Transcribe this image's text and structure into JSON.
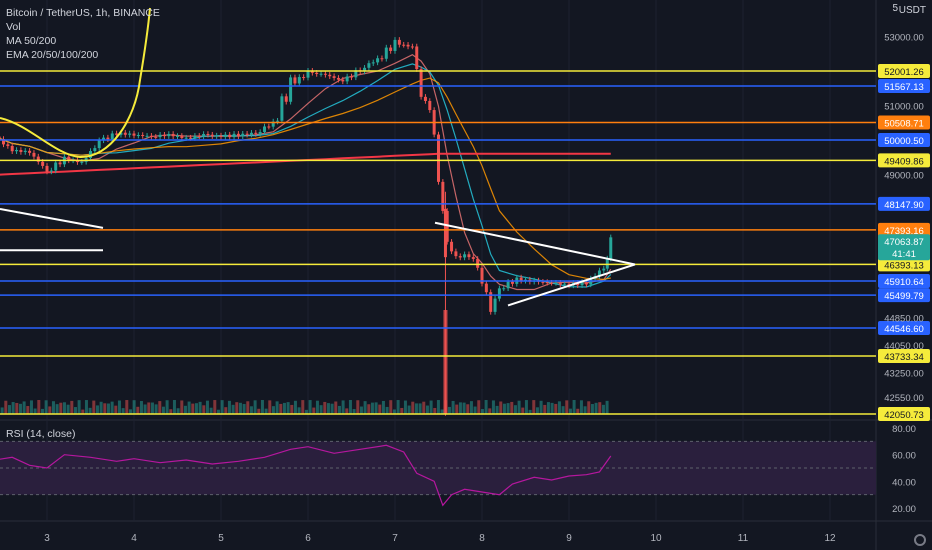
{
  "legend": {
    "title": "Bitcoin / TetherUS, 1h, BINANCE",
    "vol": "Vol",
    "ma": "MA 50/200",
    "ema": "EMA 20/50/100/200"
  },
  "rsi_label": "RSI (14, close)",
  "currency": "USDT",
  "currency_mark": "5",
  "colors": {
    "background": "#131722",
    "up": "#26a69a",
    "down": "#ef5350",
    "yellow": "#f5eb3b",
    "blue": "#2962ff",
    "orange": "#ff7f0e",
    "rsi_line": "#b5179e",
    "rsi_band": "#2a1f3d"
  },
  "chart_data": {
    "type": "candlestick",
    "x_ticks": [
      "3",
      "4",
      "5",
      "6",
      "7",
      "8",
      "9",
      "10",
      "11",
      "12"
    ],
    "price_ticks": [
      53000.0,
      51000.0,
      49000.0,
      44850.0,
      44050.0,
      43250.0,
      42550.0
    ],
    "rsi_ticks": [
      80.0,
      60.0,
      40.0,
      20.0
    ],
    "current_price": "47063.87",
    "countdown": "41:41",
    "levels": [
      {
        "price": 52001.26,
        "label": "52001.26",
        "kind": "yellow"
      },
      {
        "price": 51567.13,
        "label": "51567.13",
        "kind": "blue"
      },
      {
        "price": 50508.71,
        "label": "50508.71",
        "kind": "orange"
      },
      {
        "price": 50000.5,
        "label": "50000.50",
        "kind": "blue"
      },
      {
        "price": 49409.86,
        "label": "49409.86",
        "kind": "yellow"
      },
      {
        "price": 48147.9,
        "label": "48147.90",
        "kind": "blue"
      },
      {
        "price": 47393.16,
        "label": "47393.16",
        "kind": "orange"
      },
      {
        "price": 46393.13,
        "label": "46393.13",
        "kind": "yellow"
      },
      {
        "price": 45910.64,
        "label": "45910.64",
        "kind": "blue"
      },
      {
        "price": 45499.79,
        "label": "45499.79",
        "kind": "blue"
      },
      {
        "price": 44546.6,
        "label": "44546.60",
        "kind": "blue"
      },
      {
        "price": 43733.34,
        "label": "43733.34",
        "kind": "yellow"
      },
      {
        "price": 42050.73,
        "label": "42050.73",
        "kind": "yellow"
      }
    ],
    "price_path": [
      [
        2.4,
        50100
      ],
      [
        2.6,
        49700
      ],
      [
        2.8,
        49650
      ],
      [
        3.0,
        49100
      ],
      [
        3.2,
        49450
      ],
      [
        3.4,
        49350
      ],
      [
        3.6,
        49950
      ],
      [
        3.8,
        50200
      ],
      [
        4.0,
        50150
      ],
      [
        4.2,
        50100
      ],
      [
        4.4,
        50150
      ],
      [
        4.6,
        50050
      ],
      [
        4.8,
        50150
      ],
      [
        5.0,
        50100
      ],
      [
        5.2,
        50150
      ],
      [
        5.4,
        50200
      ],
      [
        5.6,
        50500
      ],
      [
        5.8,
        51600
      ],
      [
        6.0,
        51950
      ],
      [
        6.2,
        51900
      ],
      [
        6.4,
        51700
      ],
      [
        6.6,
        52050
      ],
      [
        6.8,
        52350
      ],
      [
        7.0,
        52800
      ],
      [
        7.2,
        52700
      ],
      [
        7.3,
        51300
      ],
      [
        7.4,
        50900
      ],
      [
        7.5,
        49000
      ],
      [
        7.6,
        47000
      ],
      [
        7.7,
        46600
      ],
      [
        7.8,
        46650
      ],
      [
        7.9,
        46550
      ],
      [
        8.0,
        45900
      ],
      [
        8.1,
        45100
      ],
      [
        8.2,
        45700
      ],
      [
        8.4,
        45950
      ],
      [
        8.6,
        45900
      ],
      [
        8.8,
        45850
      ],
      [
        9.0,
        45800
      ],
      [
        9.2,
        45850
      ],
      [
        9.4,
        46300
      ],
      [
        9.48,
        47060
      ]
    ],
    "rsi_path": [
      [
        2.4,
        56
      ],
      [
        2.6,
        58
      ],
      [
        2.8,
        52
      ],
      [
        3.0,
        50
      ],
      [
        3.2,
        60
      ],
      [
        3.5,
        58
      ],
      [
        3.8,
        55
      ],
      [
        4.0,
        57
      ],
      [
        4.3,
        54
      ],
      [
        4.6,
        56
      ],
      [
        4.9,
        53
      ],
      [
        5.2,
        55
      ],
      [
        5.5,
        58
      ],
      [
        5.8,
        64
      ],
      [
        6.0,
        66
      ],
      [
        6.3,
        61
      ],
      [
        6.6,
        64
      ],
      [
        6.9,
        67
      ],
      [
        7.1,
        62
      ],
      [
        7.25,
        46
      ],
      [
        7.45,
        40
      ],
      [
        7.55,
        22
      ],
      [
        7.65,
        30
      ],
      [
        7.8,
        34
      ],
      [
        8.0,
        32
      ],
      [
        8.2,
        30
      ],
      [
        8.35,
        38
      ],
      [
        8.6,
        43
      ],
      [
        8.8,
        41
      ],
      [
        9.0,
        44
      ],
      [
        9.2,
        45
      ],
      [
        9.35,
        47
      ],
      [
        9.48,
        59
      ]
    ]
  }
}
